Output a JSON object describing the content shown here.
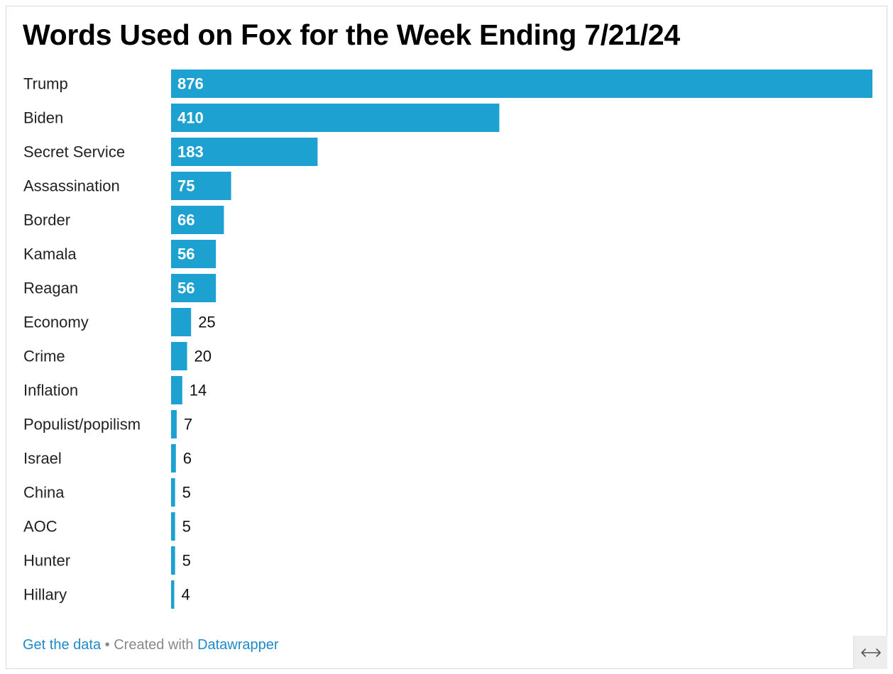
{
  "chart_data": {
    "type": "bar",
    "orientation": "horizontal",
    "title": "Words Used on Fox for the Week Ending 7/21/24",
    "categories": [
      "Trump",
      "Biden",
      "Secret Service",
      "Assassination",
      "Border",
      "Kamala",
      "Reagan",
      "Economy",
      "Crime",
      "Inflation",
      "Populist/popilism",
      "Israel",
      "China",
      "AOC",
      "Hunter",
      "Hillary"
    ],
    "values": [
      876,
      410,
      183,
      75,
      66,
      56,
      56,
      25,
      20,
      14,
      7,
      6,
      5,
      5,
      5,
      4
    ],
    "xlim": [
      0,
      876
    ],
    "bar_color": "#1ca1d0",
    "grid": false,
    "value_labels": true
  },
  "footer": {
    "get_data": "Get the data",
    "separator": "•",
    "created_with": "Created with",
    "datawrapper": "Datawrapper"
  },
  "icons": {
    "expand": "expand-horizontal-icon"
  },
  "colors": {
    "link": "#1d8ac9",
    "muted": "#888888"
  }
}
